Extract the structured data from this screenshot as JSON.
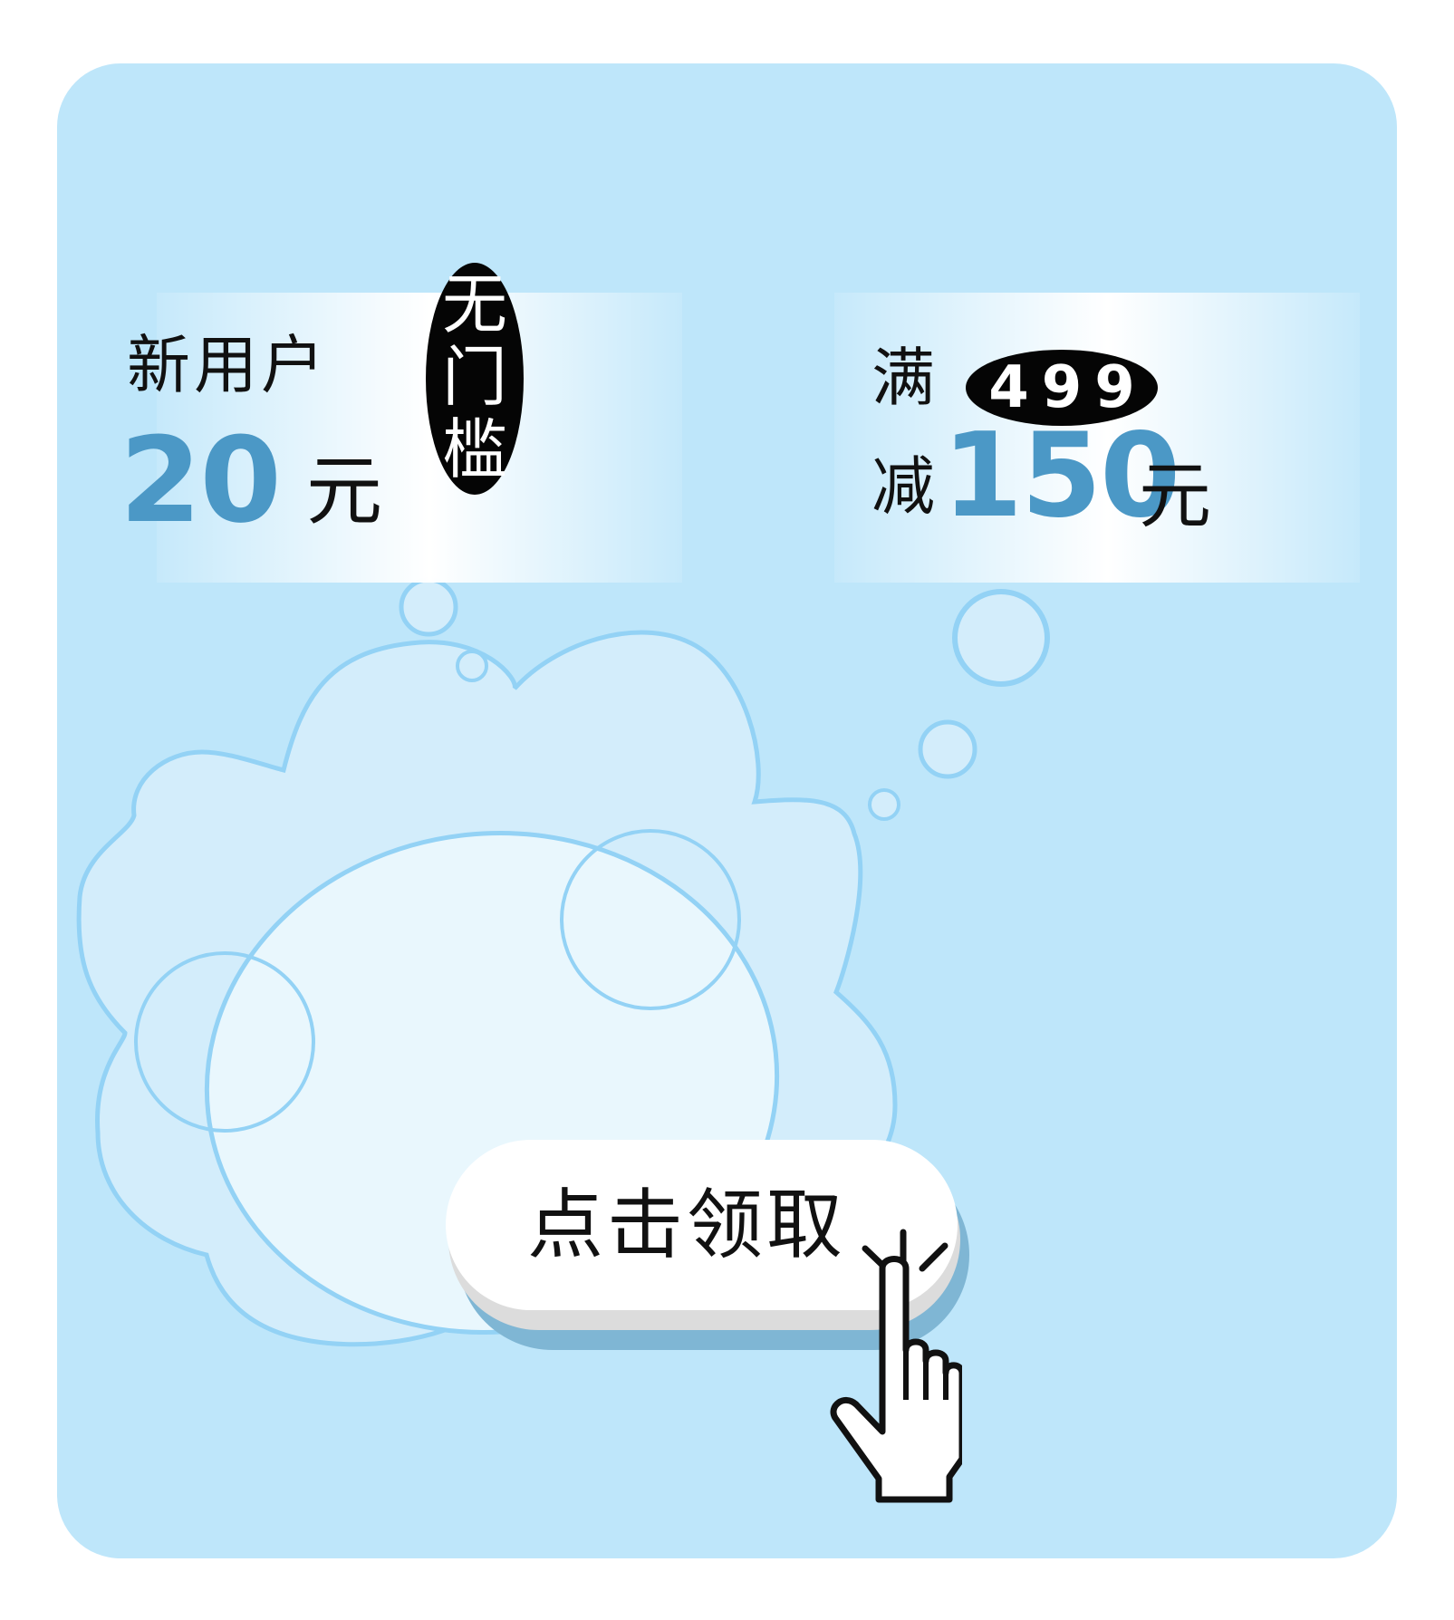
{
  "coupon_left": {
    "title": "新用户",
    "amount": "20",
    "unit": "元",
    "badge_chars": [
      "无",
      "门",
      "槛"
    ]
  },
  "coupon_right": {
    "prefix_full": "满",
    "minimum": "499",
    "prefix_reduce": "减",
    "amount": "150",
    "unit": "元"
  },
  "cta": {
    "label": "点击领取"
  },
  "colors": {
    "panel": "#bee6fa",
    "accent_blue": "#4b98c6",
    "cloud_outline": "#93d2f5",
    "badge": "#050505"
  },
  "icons": [
    "click-sparkle-icon",
    "pointer-hand-icon"
  ]
}
